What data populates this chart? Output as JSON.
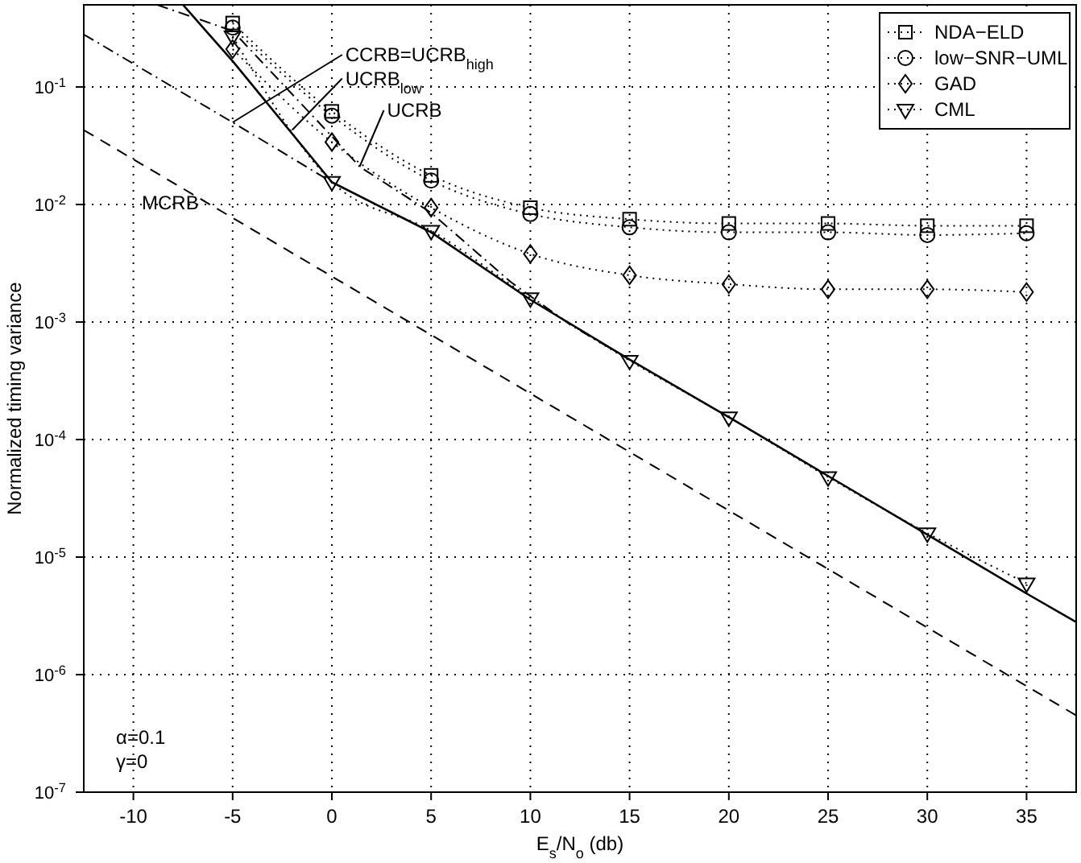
{
  "chart_data": {
    "type": "line",
    "xlabel": "E$_{s}$/N$_{o}$ (db)",
    "ylabel": "Normalized timing variance",
    "xlim": [
      -12.5,
      37.5
    ],
    "xticks": [
      -10,
      -5,
      0,
      5,
      10,
      15,
      20,
      25,
      30,
      35
    ],
    "ylim": [
      1e-07,
      0.5
    ],
    "yticks": [
      {
        "value": 1e-07,
        "label": "10$^{-7}$"
      },
      {
        "value": 1e-06,
        "label": "10$^{-6}$"
      },
      {
        "value": 1e-05,
        "label": "10$^{-5}$"
      },
      {
        "value": 0.0001,
        "label": "10$^{-4}$"
      },
      {
        "value": 0.001,
        "label": "10$^{-3}$"
      },
      {
        "value": 0.01,
        "label": "10$^{-2}$"
      },
      {
        "value": 0.1,
        "label": "10$^{-1}$"
      }
    ],
    "log": "y",
    "grid": true,
    "legend": "top right",
    "series": [
      {
        "name": "NDA−ELD",
        "color": "#000000",
        "marker": "square",
        "line_style": "dotted",
        "x": [
          -5,
          0,
          5,
          10,
          15,
          20,
          25,
          30,
          35
        ],
        "values": [
          0.35,
          0.062,
          0.0177,
          0.0094,
          0.0075,
          0.0069,
          0.0069,
          0.0066,
          0.0066
        ]
      },
      {
        "name": "low−SNR−UML",
        "color": "#000000",
        "marker": "circle",
        "line_style": "dotted",
        "x": [
          -5,
          0,
          5,
          10,
          15,
          20,
          25,
          30,
          35
        ],
        "values": [
          0.32,
          0.057,
          0.016,
          0.0083,
          0.0064,
          0.0058,
          0.0058,
          0.0055,
          0.0057
        ]
      },
      {
        "name": "GAD",
        "color": "#000000",
        "marker": "diamond",
        "line_style": "dotted",
        "x": [
          -5,
          0,
          5,
          10,
          15,
          20,
          25,
          30,
          35
        ],
        "values": [
          0.21,
          0.034,
          0.0094,
          0.0038,
          0.0025,
          0.0021,
          0.0019,
          0.0019,
          0.0018
        ]
      },
      {
        "name": "CML",
        "color": "#000000",
        "marker": "triangle",
        "line_style": "dotted",
        "x": [
          -5,
          0,
          5,
          10,
          15,
          20,
          25,
          30,
          35
        ],
        "values": [
          0.27,
          0.0156,
          0.006,
          0.0016,
          0.00047,
          0.000155,
          4.8e-05,
          1.6e-05,
          6e-06
        ]
      },
      {
        "color": "#000000",
        "marker": "none",
        "line_style": "solid",
        "x": [
          -7.5,
          -5,
          0,
          5,
          10,
          15,
          20,
          25,
          30,
          35,
          37.5
        ],
        "values": [
          0.5,
          0.166,
          0.0155,
          0.0058,
          0.00155,
          0.00048,
          0.000155,
          4.9e-05,
          1.55e-05,
          4.9e-06,
          2.8e-06
        ]
      },
      {
        "color": "#000000",
        "marker": "none",
        "line_style": "dashdot",
        "x": [
          -12.5,
          -5,
          0
        ],
        "values": [
          0.28,
          0.05,
          0.0155
        ]
      },
      {
        "color": "#000000",
        "marker": "none",
        "line_style": "dashdot",
        "x": [
          -8.8,
          -5,
          0,
          1.4,
          5,
          9,
          12,
          15
        ],
        "values": [
          0.5,
          0.3,
          0.038,
          0.021,
          0.0085,
          0.0022,
          0.00095,
          0.00048
        ]
      },
      {
        "color": "#000000",
        "marker": "none",
        "line_style": "dashed",
        "x": [
          -12.5,
          37.5
        ],
        "values": [
          0.043,
          4.5e-07
        ]
      }
    ],
    "annotations": [
      {
        "text": "CCRB=UCRB$_{high}$",
        "x": -5,
        "y": 0.05
      },
      {
        "text": "UCRB$_{low}$",
        "x": -2,
        "y": 0.043
      },
      {
        "text": "UCRB",
        "x": 1.4,
        "y": 0.021
      },
      "MCRB",
      "α=0.1",
      "γ=0"
    ]
  }
}
